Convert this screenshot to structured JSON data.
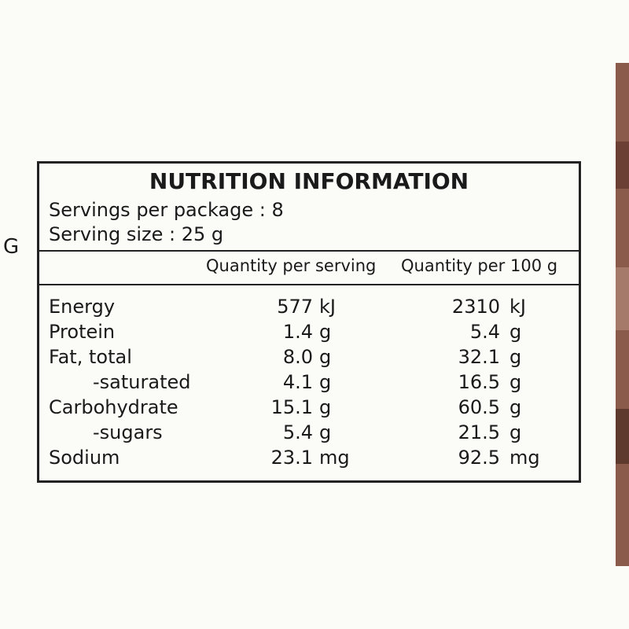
{
  "side_letter": "G",
  "header": {
    "title": "NUTRITION INFORMATION",
    "servings": "Servings per package : 8",
    "serving_size": "Serving size : 25 g"
  },
  "columns": [
    "Quantity per serving",
    "Quantity per 100 g"
  ],
  "table": {
    "rows": [
      {
        "name": "Energy",
        "indent": false,
        "serving": [
          "577",
          "kJ"
        ],
        "per100": [
          "2310",
          "kJ"
        ]
      },
      {
        "name": "Protein",
        "indent": false,
        "serving": [
          "1.4",
          "g"
        ],
        "per100": [
          "5.4",
          "g"
        ]
      },
      {
        "name": "Fat, total",
        "indent": false,
        "serving": [
          "8.0",
          "g"
        ],
        "per100": [
          "32.1",
          "g"
        ]
      },
      {
        "name": "-saturated",
        "indent": true,
        "serving": [
          "4.1",
          "g"
        ],
        "per100": [
          "16.5",
          "g"
        ]
      },
      {
        "name": "Carbohydrate",
        "indent": false,
        "serving": [
          "15.1",
          "g"
        ],
        "per100": [
          "60.5",
          "g"
        ]
      },
      {
        "name": "-sugars",
        "indent": true,
        "serving": [
          "5.4",
          "g"
        ],
        "per100": [
          "21.5",
          "g"
        ]
      },
      {
        "name": "Sodium",
        "indent": false,
        "serving": [
          "23.1",
          "mg"
        ],
        "per100": [
          "92.5",
          "mg"
        ]
      }
    ]
  }
}
